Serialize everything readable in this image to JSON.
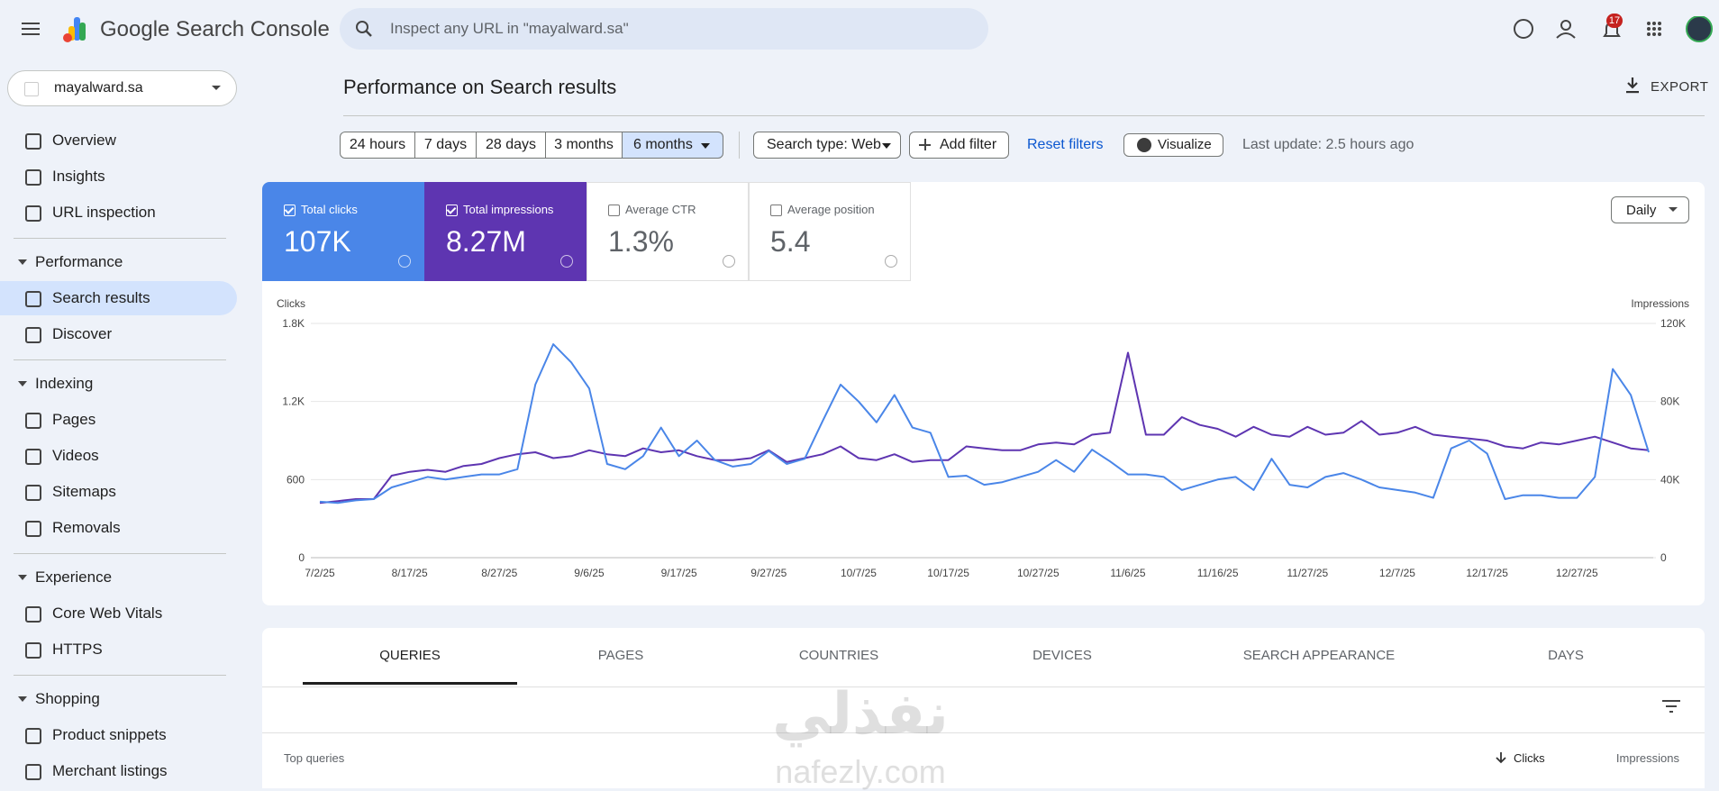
{
  "header": {
    "product": "Google Search Console",
    "search_placeholder": "Inspect any URL in \"mayalward.sa\"",
    "notification_count": 17
  },
  "property": "mayalward.sa",
  "nav": {
    "top_items": [
      "Overview",
      "Insights",
      "URL inspection"
    ],
    "sections": [
      {
        "title": "Performance",
        "items": [
          "Search results",
          "Discover"
        ]
      },
      {
        "title": "Indexing",
        "items": [
          "Pages",
          "Videos",
          "Sitemaps",
          "Removals"
        ]
      },
      {
        "title": "Experience",
        "items": [
          "Core Web Vitals",
          "HTTPS"
        ]
      },
      {
        "title": "Shopping",
        "items": [
          "Product snippets",
          "Merchant listings"
        ]
      }
    ]
  },
  "page_title": "Performance on Search results",
  "export": "EXPORT",
  "filters": {
    "ranges": [
      "24 hours",
      "7 days",
      "28 days",
      "3 months",
      "6 months"
    ],
    "search_type": "Search type: Web",
    "add_filter": "Add filter",
    "reset": "Reset filters",
    "visualize": "Visualize",
    "last_update": "Last update: 2.5 hours ago"
  },
  "metrics": [
    {
      "label": "Total clicks",
      "value": "107K",
      "selected": true
    },
    {
      "label": "Total impressions",
      "value": "8.27M",
      "selected": true
    },
    {
      "label": "Average CTR",
      "value": "1.3%",
      "selected": false
    },
    {
      "label": "Average position",
      "value": "5.4",
      "selected": false
    }
  ],
  "granularity": "Daily",
  "chart_data": {
    "type": "line",
    "y_label": "Clicks",
    "y2_label": "Impressions",
    "categories": [
      "7/2/25",
      null,
      null,
      null,
      null,
      "8/17/25",
      null,
      null,
      null,
      null,
      "8/27/25",
      null,
      null,
      null,
      null,
      "9/6/25",
      null,
      null,
      null,
      null,
      "9/17/25",
      null,
      null,
      null,
      null,
      "9/27/25",
      null,
      null,
      null,
      null,
      "10/7/25",
      null,
      null,
      null,
      null,
      "10/17/25",
      null,
      null,
      null,
      null,
      "10/27/25",
      null,
      null,
      null,
      null,
      "11/6/25",
      null,
      null,
      null,
      null,
      "11/16/25",
      null,
      null,
      null,
      null,
      "11/27/25",
      null,
      null,
      null,
      null,
      "12/7/25",
      null,
      null,
      null,
      null,
      "12/17/25",
      null,
      null,
      null,
      null,
      "12/27/25",
      null,
      null,
      null,
      null
    ],
    "series": [
      {
        "name": "Clicks",
        "color": "#4a86e8",
        "values": [
          430,
          420,
          440,
          450,
          540,
          580,
          620,
          600,
          620,
          640,
          640,
          680,
          1330,
          1640,
          1500,
          1300,
          720,
          680,
          780,
          1000,
          780,
          900,
          750,
          700,
          720,
          820,
          720,
          760,
          1050,
          1330,
          1200,
          1040,
          1250,
          1000,
          960,
          620,
          630,
          560,
          580,
          620,
          660,
          750,
          660,
          830,
          740,
          640,
          640,
          620,
          520,
          560,
          600,
          620,
          520,
          760,
          560,
          540,
          620,
          650,
          600,
          540,
          520,
          500,
          460,
          840,
          900,
          800,
          450,
          480,
          480,
          460,
          460,
          620,
          1450,
          1250,
          810
        ]
      },
      {
        "name": "Impressions",
        "color": "#5e35b1",
        "axis": "y2",
        "values": [
          28000,
          29000,
          30000,
          30000,
          42000,
          44000,
          45000,
          44000,
          47000,
          48000,
          51000,
          53000,
          54000,
          51000,
          52000,
          55000,
          53000,
          52000,
          56000,
          54000,
          55000,
          52000,
          50000,
          50000,
          51000,
          55000,
          49000,
          51000,
          53000,
          57000,
          51000,
          50000,
          53000,
          49000,
          50000,
          50000,
          57000,
          56000,
          55000,
          55000,
          58000,
          59000,
          58000,
          63000,
          64000,
          105000,
          63000,
          63000,
          72000,
          68000,
          66000,
          62000,
          67000,
          63000,
          62000,
          67000,
          63000,
          64000,
          70000,
          63000,
          64000,
          67000,
          63000,
          62000,
          61000,
          60000,
          57000,
          56000,
          59000,
          58000,
          60000,
          62000,
          59000,
          56000,
          55000
        ]
      }
    ],
    "ylim": [
      0,
      1800
    ],
    "yticks": [
      0,
      600,
      {
        "value": 1200,
        "label": "1.2K"
      },
      {
        "value": 1800,
        "label": "1.8K"
      }
    ],
    "y2lim": [
      0,
      120000
    ],
    "y2ticks": [
      0,
      {
        "value": 40000,
        "label": "40K"
      },
      {
        "value": 80000,
        "label": "80K"
      },
      {
        "value": 120000,
        "label": "120K"
      }
    ],
    "grid": true
  },
  "tabs": [
    "QUERIES",
    "PAGES",
    "COUNTRIES",
    "DEVICES",
    "SEARCH APPEARANCE",
    "DAYS"
  ],
  "table": {
    "title": "Top queries",
    "columns": [
      "Clicks",
      "Impressions"
    ]
  },
  "watermark": {
    "arabic": "نفذلي",
    "latin": "nafezly.com"
  }
}
